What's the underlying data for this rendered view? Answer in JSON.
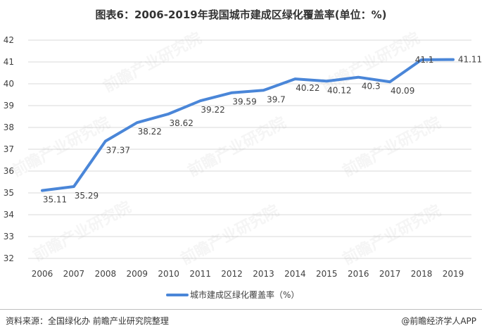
{
  "title": "图表6：2006-2019年我国城市建成区绿化覆盖率(单位：%)",
  "footer": {
    "source": "资料来源：全国绿化办 前瞻产业研究院整理",
    "brand": "@前瞻经济学人APP"
  },
  "watermark": "前瞻产业研究院",
  "colors": {
    "line": "#4a86d8",
    "grid": "#d9d9d9",
    "text": "#404040"
  },
  "chart_data": {
    "type": "line",
    "title": "图表6：2006-2019年我国城市建成区绿化覆盖率(单位：%)",
    "xlabel": "",
    "ylabel": "",
    "categories": [
      "2006",
      "2007",
      "2008",
      "2009",
      "2010",
      "2011",
      "2012",
      "2013",
      "2014",
      "2015",
      "2016",
      "2017",
      "2018",
      "2019"
    ],
    "series": [
      {
        "name": "城市建成区绿化覆盖率（%）",
        "values": [
          35.11,
          35.29,
          37.37,
          38.22,
          38.62,
          39.22,
          39.59,
          39.7,
          40.22,
          40.12,
          40.3,
          40.09,
          41.1,
          41.11
        ],
        "labels": [
          "35.11",
          "35.29",
          "37.37",
          "38.22",
          "38.62",
          "39.22",
          "39.59",
          "39.7",
          "40.22",
          "40.12",
          "40.3",
          "40.09",
          "41.1",
          "41.11"
        ]
      }
    ],
    "ylim": [
      32,
      42
    ],
    "yticks": [
      "32",
      "33",
      "34",
      "35",
      "36",
      "37",
      "38",
      "39",
      "40",
      "41",
      "42"
    ],
    "grid": true,
    "legend_position": "bottom"
  }
}
